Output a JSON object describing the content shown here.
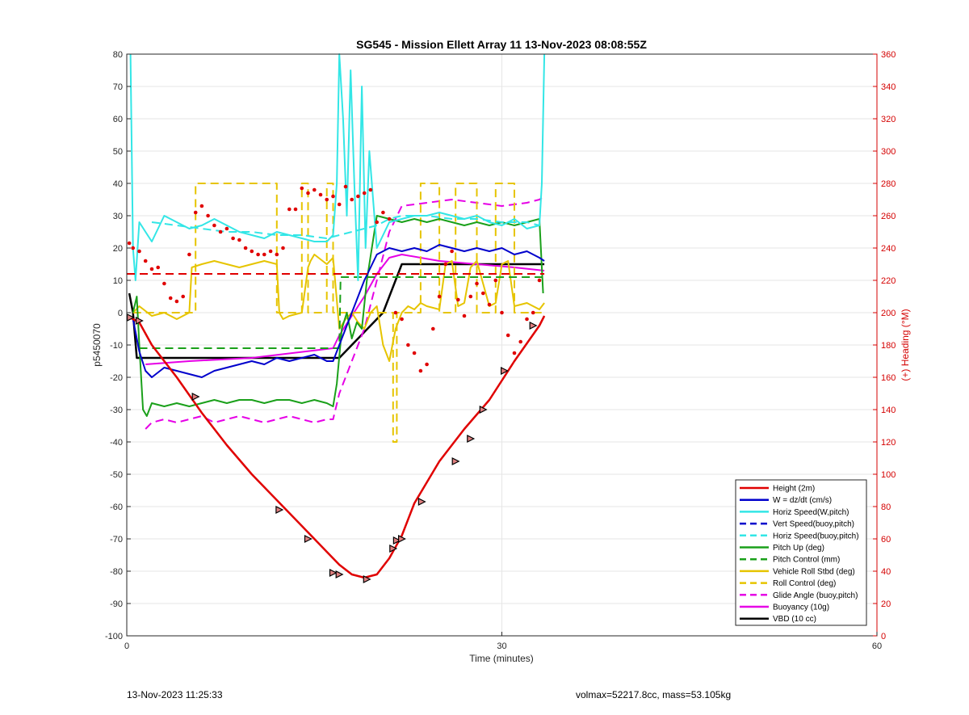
{
  "chart_data": {
    "type": "line",
    "title": "SG545 - Mission Ellett Array 11 13-Nov-2023 08:08:55Z",
    "xlabel": "Time (minutes)",
    "ylabel": "p5450070",
    "y2label": "(+) Heading (°M)",
    "xlim": [
      0,
      60
    ],
    "ylim": [
      -100,
      80
    ],
    "y2lim": [
      0,
      360
    ],
    "x_ticks": [
      0,
      30,
      60
    ],
    "y_ticks": [
      -100,
      -90,
      -80,
      -70,
      -60,
      -50,
      -40,
      -30,
      -20,
      -10,
      0,
      10,
      20,
      30,
      40,
      50,
      60,
      70,
      80
    ],
    "y2_ticks": [
      0,
      20,
      40,
      60,
      80,
      100,
      120,
      140,
      160,
      180,
      200,
      220,
      240,
      260,
      280,
      300,
      320,
      340,
      360
    ],
    "grid": true,
    "legend_position": "bottom-right",
    "legend": [
      {
        "label": "Height (2m)",
        "color": "#e00000",
        "dash": false
      },
      {
        "label": "W = dz/dt (cm/s)",
        "color": "#0000cc",
        "dash": false
      },
      {
        "label": "Horiz Speed(W,pitch)",
        "color": "#33e6e6",
        "dash": false
      },
      {
        "label": "Vert Speed(buoy,pitch)",
        "color": "#0000cc",
        "dash": true
      },
      {
        "label": "Horiz Speed(buoy,pitch)",
        "color": "#33e6e6",
        "dash": true
      },
      {
        "label": "Pitch Up (deg)",
        "color": "#1aa01a",
        "dash": false
      },
      {
        "label": "Pitch Control (mm)",
        "color": "#1aa01a",
        "dash": true
      },
      {
        "label": "Vehicle Roll Stbd (deg)",
        "color": "#e6c400",
        "dash": false
      },
      {
        "label": "Roll Control (deg)",
        "color": "#e6c400",
        "dash": true
      },
      {
        "label": "Glide Angle (buoy,pitch)",
        "color": "#e600e6",
        "dash": true
      },
      {
        "label": "Buoyancy (10g)",
        "color": "#e600e6",
        "dash": false
      },
      {
        "label": "VBD (10 cc)",
        "color": "#000000",
        "dash": false
      }
    ],
    "series": [
      {
        "name": "Height (2m)",
        "color": "#e00000",
        "dash": false,
        "width": 2.5,
        "x": [
          0,
          1,
          2,
          4,
          6,
          8,
          10,
          12,
          14,
          16,
          17,
          18,
          19,
          20,
          21,
          22,
          23,
          25,
          27,
          29,
          31,
          33,
          33.4
        ],
        "y": [
          -1,
          -3,
          -10,
          -20,
          -31,
          -41,
          -50,
          -58,
          -66,
          -74,
          -78,
          -81,
          -82,
          -81,
          -76,
          -69,
          -59,
          -46,
          -36,
          -27,
          -15,
          -4,
          -1
        ]
      },
      {
        "name": "W = dz/dt (cm/s)",
        "color": "#0000cc",
        "dash": false,
        "width": 2,
        "x": [
          0.5,
          1,
          1.5,
          2,
          3,
          4,
          5,
          6,
          7,
          8,
          9,
          10,
          11,
          12,
          13,
          14,
          15,
          16,
          16.5,
          17,
          18,
          19,
          20,
          21,
          22,
          23,
          24,
          25,
          26,
          27,
          28,
          29,
          30,
          31,
          32,
          33,
          33.4
        ],
        "y": [
          -2,
          -12,
          -18,
          -20,
          -17,
          -18,
          -19,
          -20,
          -18,
          -17,
          -16,
          -15,
          -16,
          -14,
          -15,
          -14,
          -13,
          -15,
          -15,
          -10,
          0,
          10,
          18,
          20,
          19,
          20,
          19,
          21,
          20,
          19,
          20,
          19,
          20,
          18,
          19,
          17,
          16
        ]
      },
      {
        "name": "Horiz Speed(W,pitch)",
        "color": "#33e6e6",
        "dash": false,
        "width": 2,
        "x": [
          0.3,
          0.5,
          0.7,
          1,
          1.5,
          2,
          3,
          4,
          5,
          6,
          7,
          8,
          9,
          10,
          11,
          12,
          13,
          14,
          15,
          16,
          16.5,
          16.8,
          17,
          17.3,
          17.6,
          17.9,
          18.2,
          18.5,
          18.8,
          19.1,
          19.4,
          20,
          21,
          22,
          23,
          24,
          25,
          26,
          27,
          28,
          29,
          30,
          31,
          32,
          33,
          33.2,
          33.4
        ],
        "y": [
          80,
          20,
          10,
          28,
          25,
          22,
          30,
          28,
          26,
          27,
          29,
          27,
          25,
          24,
          23,
          25,
          24,
          23,
          22,
          22,
          24,
          40,
          80,
          60,
          30,
          75,
          40,
          10,
          70,
          20,
          50,
          20,
          28,
          29,
          30,
          30,
          31,
          30,
          29,
          30,
          28,
          27,
          29,
          26,
          27,
          40,
          80
        ]
      },
      {
        "name": "Horiz Speed(buoy,pitch)",
        "color": "#33e6e6",
        "dash": true,
        "width": 2,
        "x": [
          2,
          4,
          6,
          8,
          10,
          12,
          14,
          16,
          17,
          18,
          19,
          20,
          21,
          22,
          24,
          26,
          28,
          30,
          32,
          33
        ],
        "y": [
          28,
          27,
          26,
          25,
          25,
          24,
          24,
          23,
          24,
          25,
          26,
          27,
          29,
          30,
          30,
          29,
          29,
          28,
          28,
          27
        ]
      },
      {
        "name": "Pitch Up (deg)",
        "color": "#1aa01a",
        "dash": false,
        "width": 2,
        "x": [
          0.5,
          0.8,
          1,
          1.3,
          1.6,
          2,
          3,
          4,
          5,
          6,
          7,
          8,
          9,
          10,
          11,
          12,
          13,
          14,
          15,
          16,
          16.5,
          16.8,
          17.2,
          17.6,
          18,
          18.4,
          18.8,
          19.2,
          19.6,
          20,
          21,
          22,
          23,
          24,
          25,
          26,
          27,
          28,
          29,
          30,
          31,
          32,
          33,
          33.3
        ],
        "y": [
          0,
          5,
          -10,
          -30,
          -32,
          -28,
          -29,
          -28,
          -29,
          -28,
          -27,
          -28,
          -27,
          -27,
          -28,
          -27,
          -27,
          -28,
          -27,
          -28,
          -29,
          -22,
          -5,
          0,
          -8,
          -3,
          -5,
          10,
          20,
          30,
          29,
          28,
          29,
          28,
          29,
          28,
          27,
          28,
          27,
          28,
          27,
          28,
          29,
          6
        ]
      },
      {
        "name": "Pitch Control (mm)",
        "color": "#1aa01a",
        "dash": true,
        "width": 2,
        "x": [
          1,
          17,
          17.1,
          33.4
        ],
        "y": [
          -11,
          -11,
          11,
          11
        ]
      },
      {
        "name": "Vehicle Roll Stbd (deg)",
        "color": "#e6c400",
        "dash": false,
        "width": 2,
        "x": [
          0.5,
          1,
          2,
          3,
          4,
          5,
          5.2,
          6,
          7,
          8,
          9,
          10,
          11,
          12,
          12.2,
          12.5,
          13,
          14,
          14.5,
          14.7,
          15,
          16,
          16.5,
          17,
          17.5,
          18,
          18.5,
          19,
          19.5,
          20,
          20.5,
          21,
          21.5,
          22,
          22.5,
          23,
          23.5,
          24,
          25,
          25.5,
          26,
          26.5,
          27,
          27.5,
          28,
          29,
          29.5,
          30,
          30.5,
          31,
          32,
          33,
          33.4
        ],
        "y": [
          0,
          2,
          -1,
          0,
          -2,
          0,
          14,
          15,
          16,
          15,
          14,
          15,
          16,
          15,
          0,
          -2,
          -1,
          0,
          14,
          16,
          18,
          15,
          17,
          -5,
          -2,
          0,
          -3,
          -5,
          0,
          2,
          -10,
          -15,
          -5,
          0,
          2,
          1,
          3,
          2,
          1,
          15,
          16,
          2,
          3,
          14,
          16,
          2,
          3,
          15,
          16,
          2,
          3,
          1,
          3
        ]
      },
      {
        "name": "Roll Control (deg)",
        "color": "#e6c400",
        "dash": true,
        "width": 2,
        "x": [
          0.5,
          5.5,
          5.5,
          12,
          12,
          14,
          14,
          14.5,
          14.5,
          16,
          16,
          16.5,
          16.5,
          21.3,
          21.3,
          21.6,
          21.6,
          23.5,
          23.5,
          25,
          25,
          26.3,
          26.3,
          28,
          28,
          29.5,
          29.5,
          31,
          31,
          33.4
        ],
        "y": [
          0,
          0,
          40,
          40,
          0,
          0,
          40,
          40,
          0,
          0,
          40,
          40,
          0,
          0,
          -40,
          -40,
          0,
          0,
          40,
          40,
          0,
          0,
          40,
          40,
          0,
          0,
          40,
          40,
          0,
          0
        ]
      },
      {
        "name": "Glide Angle (buoy,pitch)",
        "color": "#e600e6",
        "dash": true,
        "width": 2,
        "x": [
          1.5,
          2,
          3,
          4,
          5,
          6,
          7,
          8,
          9,
          10,
          11,
          12,
          13,
          14,
          15,
          16,
          16.5,
          17,
          18,
          19,
          20,
          21,
          22,
          24,
          26,
          28,
          30,
          32,
          33,
          33.4
        ],
        "y": [
          -36,
          -34,
          -33,
          -34,
          -33,
          -32,
          -34,
          -33,
          -32,
          -33,
          -34,
          -33,
          -32,
          -33,
          -34,
          -33,
          -33,
          -25,
          -15,
          -5,
          10,
          25,
          33,
          34,
          35,
          34,
          33,
          34,
          35,
          36
        ]
      },
      {
        "name": "Buoyancy (10g)",
        "color": "#e600e6",
        "dash": false,
        "width": 2,
        "x": [
          1.5,
          5,
          10,
          16.5,
          17,
          18,
          19,
          20,
          21,
          22,
          25,
          28,
          31,
          33.4
        ],
        "y": [
          -16,
          -15,
          -14,
          -11,
          -7,
          -1,
          5,
          12,
          17,
          18,
          16,
          15,
          14,
          13
        ]
      },
      {
        "name": "VBD (10 cc)",
        "color": "#000000",
        "dash": false,
        "width": 2.5,
        "x": [
          0.2,
          0.5,
          0.8,
          17,
          20.5,
          22,
          32,
          33.4
        ],
        "y": [
          6,
          0,
          -14,
          -14,
          0,
          15,
          15,
          15
        ]
      }
    ],
    "heading_series": {
      "name": "Heading",
      "color": "#e00000",
      "dash": false,
      "dotted": true,
      "axis": "right",
      "x": [
        0.2,
        0.5,
        1,
        1.5,
        2,
        2.5,
        3,
        3.5,
        4,
        4.5,
        5,
        5.5,
        6,
        6.5,
        7,
        7.5,
        8,
        8.5,
        9,
        9.5,
        10,
        10.5,
        11,
        11.5,
        12,
        12.5,
        13,
        13.5,
        14,
        14.5,
        15,
        15.5,
        16,
        16.5,
        17,
        17.5,
        18,
        18.5,
        19,
        19.5,
        20,
        20.5,
        21,
        21.5,
        22,
        22.5,
        23,
        23.5,
        24,
        24.5,
        25,
        25.5,
        26,
        26.5,
        27,
        27.5,
        28,
        28.5,
        29,
        29.5,
        30,
        30.5,
        31,
        31.5,
        32,
        32.5,
        33
      ],
      "y": [
        243,
        240,
        238,
        232,
        227,
        228,
        218,
        209,
        207,
        210,
        236,
        262,
        266,
        260,
        254,
        250,
        252,
        246,
        245,
        240,
        238,
        236,
        236,
        238,
        236,
        240,
        264,
        264,
        277,
        274,
        276,
        273,
        270,
        272,
        267,
        278,
        270,
        272,
        274,
        276,
        256,
        262,
        258,
        200,
        196,
        180,
        175,
        164,
        168,
        190,
        210,
        230,
        238,
        208,
        198,
        210,
        218,
        212,
        205,
        220,
        200,
        186,
        175,
        182,
        196,
        200,
        220
      ]
    },
    "heading_ref": {
      "name": "Heading ref",
      "color": "#e00000",
      "dash": true,
      "axis": "right",
      "x": [
        0,
        33.4
      ],
      "y": [
        224,
        224
      ]
    },
    "markers": {
      "x": [
        0.3,
        1,
        5.5,
        12.2,
        14.5,
        16.5,
        17,
        19.2,
        21.3,
        21.6,
        22,
        23.6,
        26.3,
        27.5,
        28.5,
        30.2,
        32.5
      ],
      "y": [
        -1.5,
        -2.5,
        -26,
        -61,
        -70,
        -80.5,
        -81,
        -82.5,
        -73,
        -70.5,
        -70,
        -58.5,
        -46,
        -39,
        -30,
        -18,
        -4
      ]
    }
  },
  "footer": {
    "timestamp": "13-Nov-2023 11:25:33",
    "vol_mass": "volmax=52217.8cc, mass=53.105kg"
  }
}
